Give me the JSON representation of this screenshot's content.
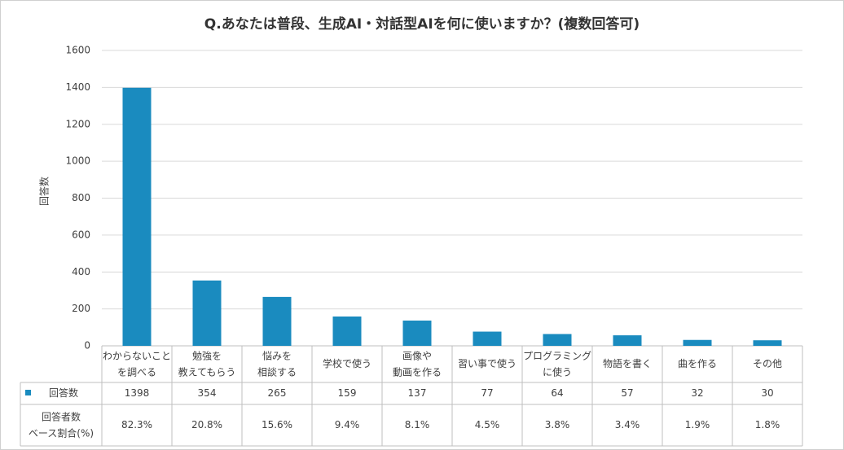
{
  "chart_data": {
    "type": "bar",
    "title": "Q.あなたは普段、生成AI・対話型AIを何に使いますか？(複数回答可)",
    "y_label": "回答数",
    "categories": [
      "わからないこと\nを調べる",
      "勉強を\n教えてもらう",
      "悩みを\n相談する",
      "学校で使う",
      "画像や\n動画を作る",
      "習い事で使う",
      "プログラミング\nに使う",
      "物語を書く",
      "曲を作る",
      "その他"
    ],
    "series": [
      {
        "name": "回答数",
        "color": "#1a8bbf",
        "values": [
          1398,
          354,
          265,
          159,
          137,
          77,
          64,
          57,
          32,
          30
        ]
      }
    ],
    "share": {
      "name": "回答者数\nベース割合(%)",
      "values": [
        82.3,
        20.8,
        15.6,
        9.4,
        8.1,
        4.5,
        3.8,
        3.4,
        1.9,
        1.8
      ],
      "value_labels": [
        "82.3%",
        "20.8%",
        "15.6%",
        "9.4%",
        "8.1%",
        "4.5%",
        "3.8%",
        "3.4%",
        "1.9%",
        "1.8%"
      ]
    },
    "ylim": [
      0,
      1600
    ],
    "yticks": [
      0,
      200,
      400,
      600,
      800,
      1000,
      1200,
      1400,
      1600
    ],
    "grid": true
  }
}
